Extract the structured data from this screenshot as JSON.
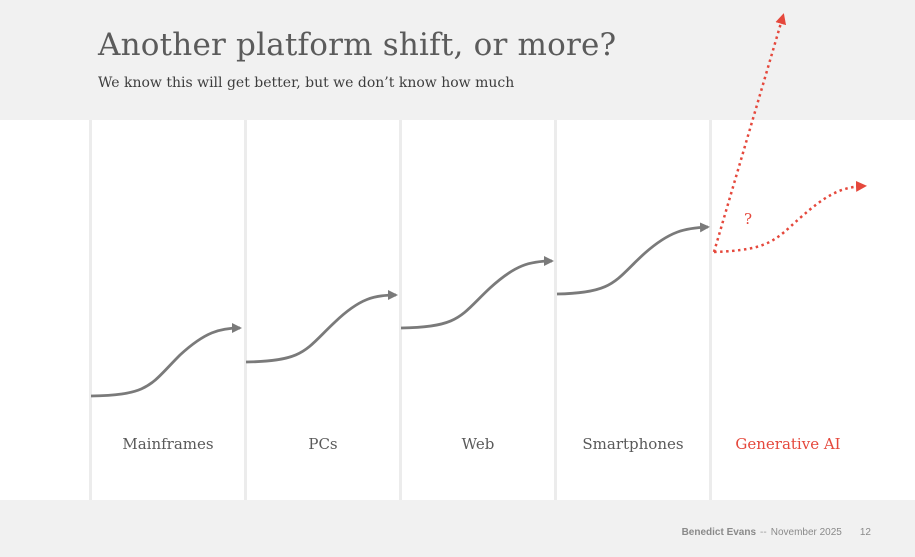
{
  "slide": {
    "title": "Another platform shift, or more?",
    "subtitle": "We know this will get better, but we don’t know how much"
  },
  "diagram": {
    "platforms": [
      {
        "label": "Mainframes",
        "highlight": false
      },
      {
        "label": "PCs",
        "highlight": false
      },
      {
        "label": "Web",
        "highlight": false
      },
      {
        "label": "Smartphones",
        "highlight": false
      },
      {
        "label": "Generative AI",
        "highlight": true
      }
    ],
    "uncertainty_mark": "?",
    "colors": {
      "curve": "#7a7a7a",
      "accent": "#e5483c",
      "divider": "#ececec",
      "band": "#f1f1f1"
    }
  },
  "footer": {
    "author": "Benedict Evans",
    "separator": "--",
    "date": "November 2025",
    "page": "12"
  }
}
